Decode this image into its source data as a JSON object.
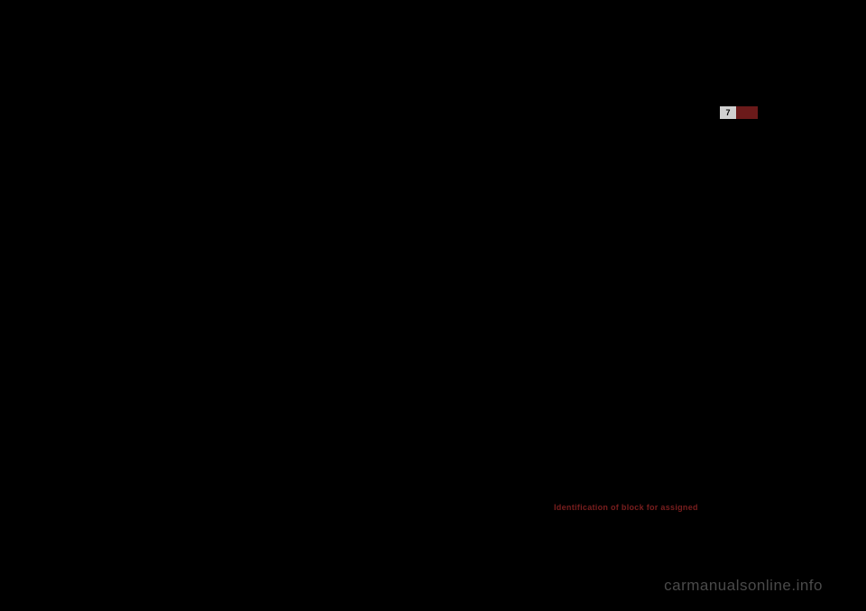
{
  "pageIndicator": {
    "number": "7"
  },
  "redHeading": "Identification of block for assigned",
  "watermark": "carmanualsonline.info",
  "colors": {
    "background": "#000000",
    "pageBoxWhite": "#d0d0d0",
    "pageBoxRed": "#6b1a1a",
    "redText": "#7a1e1e",
    "watermarkText": "#4a4a4a"
  }
}
